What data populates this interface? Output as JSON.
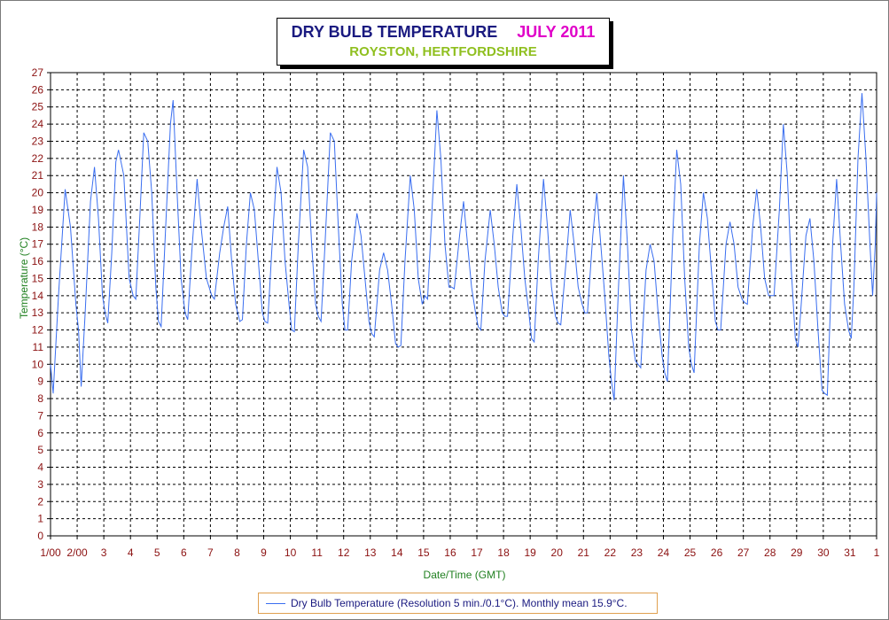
{
  "chart_data": {
    "type": "line",
    "title": "DRY BULB TEMPERATURE",
    "title_month": "JULY 2011",
    "subtitle": "ROYSTON, HERTFORDSHIRE",
    "xlabel": "Date/Time (GMT)",
    "ylabel": "Temperature (°C)",
    "ylim": [
      0,
      27
    ],
    "xlim": [
      1,
      32
    ],
    "y_ticks": [
      "0",
      "1",
      "2",
      "3",
      "4",
      "5",
      "6",
      "7",
      "8",
      "9",
      "10",
      "11",
      "12",
      "13",
      "14",
      "15",
      "16",
      "17",
      "18",
      "19",
      "20",
      "21",
      "22",
      "23",
      "24",
      "25",
      "26",
      "27"
    ],
    "x_ticks": [
      "1/00",
      "2/00",
      "3",
      "4",
      "5",
      "6",
      "7",
      "8",
      "9",
      "10",
      "11",
      "12",
      "13",
      "14",
      "15",
      "16",
      "17",
      "18",
      "19",
      "20",
      "21",
      "22",
      "23",
      "24",
      "25",
      "26",
      "27",
      "28",
      "29",
      "30",
      "31",
      "1"
    ],
    "grid": true,
    "legend_position": "bottom",
    "series": [
      {
        "name": "Dry Bulb Temperature (Resolution 5 min./0.1°C). Monthly mean 15.9°C.",
        "color": "#3a6ef0",
        "points": [
          [
            1.0,
            10.0
          ],
          [
            1.1,
            8.3
          ],
          [
            1.3,
            14.0
          ],
          [
            1.55,
            20.2
          ],
          [
            1.75,
            18.0
          ],
          [
            1.95,
            13.5
          ],
          [
            2.05,
            12.0
          ],
          [
            2.15,
            8.7
          ],
          [
            2.3,
            13.0
          ],
          [
            2.5,
            19.5
          ],
          [
            2.65,
            21.5
          ],
          [
            2.8,
            18.5
          ],
          [
            2.95,
            14.0
          ],
          [
            3.05,
            13.0
          ],
          [
            3.15,
            12.4
          ],
          [
            3.3,
            16.5
          ],
          [
            3.45,
            21.8
          ],
          [
            3.55,
            22.5
          ],
          [
            3.75,
            21.0
          ],
          [
            3.95,
            15.0
          ],
          [
            4.1,
            14.0
          ],
          [
            4.2,
            13.8
          ],
          [
            4.35,
            18.5
          ],
          [
            4.5,
            23.5
          ],
          [
            4.65,
            23.0
          ],
          [
            4.8,
            20.0
          ],
          [
            4.95,
            14.5
          ],
          [
            5.05,
            12.5
          ],
          [
            5.15,
            12.2
          ],
          [
            5.35,
            19.0
          ],
          [
            5.5,
            24.0
          ],
          [
            5.6,
            25.4
          ],
          [
            5.75,
            20.0
          ],
          [
            5.9,
            15.0
          ],
          [
            6.05,
            13.0
          ],
          [
            6.15,
            12.6
          ],
          [
            6.3,
            16.5
          ],
          [
            6.5,
            20.8
          ],
          [
            6.65,
            18.0
          ],
          [
            6.85,
            15.0
          ],
          [
            7.05,
            14.0
          ],
          [
            7.15,
            13.8
          ],
          [
            7.35,
            16.5
          ],
          [
            7.5,
            18.0
          ],
          [
            7.65,
            19.2
          ],
          [
            7.8,
            16.0
          ],
          [
            7.95,
            13.5
          ],
          [
            8.1,
            12.5
          ],
          [
            8.2,
            12.6
          ],
          [
            8.35,
            17.0
          ],
          [
            8.5,
            20.0
          ],
          [
            8.65,
            19.0
          ],
          [
            8.8,
            16.0
          ],
          [
            8.95,
            13.0
          ],
          [
            9.05,
            12.5
          ],
          [
            9.15,
            12.4
          ],
          [
            9.3,
            16.5
          ],
          [
            9.5,
            21.5
          ],
          [
            9.65,
            20.0
          ],
          [
            9.8,
            16.0
          ],
          [
            9.95,
            13.5
          ],
          [
            10.05,
            12.0
          ],
          [
            10.15,
            11.9
          ],
          [
            10.3,
            17.0
          ],
          [
            10.5,
            22.5
          ],
          [
            10.65,
            21.5
          ],
          [
            10.8,
            17.0
          ],
          [
            10.95,
            13.5
          ],
          [
            11.05,
            12.8
          ],
          [
            11.15,
            12.5
          ],
          [
            11.3,
            17.0
          ],
          [
            11.5,
            23.5
          ],
          [
            11.65,
            23.0
          ],
          [
            11.8,
            18.0
          ],
          [
            11.95,
            13.5
          ],
          [
            12.05,
            12.0
          ],
          [
            12.15,
            12.0
          ],
          [
            12.3,
            16.0
          ],
          [
            12.5,
            18.8
          ],
          [
            12.65,
            17.5
          ],
          [
            12.8,
            15.0
          ],
          [
            12.95,
            12.5
          ],
          [
            13.05,
            11.8
          ],
          [
            13.15,
            11.6
          ],
          [
            13.35,
            15.5
          ],
          [
            13.5,
            16.5
          ],
          [
            13.65,
            15.5
          ],
          [
            13.8,
            13.5
          ],
          [
            13.95,
            11.2
          ],
          [
            14.05,
            11.0
          ],
          [
            14.15,
            11.1
          ],
          [
            14.3,
            16.0
          ],
          [
            14.5,
            21.0
          ],
          [
            14.65,
            19.0
          ],
          [
            14.8,
            15.0
          ],
          [
            14.95,
            13.5
          ],
          [
            15.05,
            14.0
          ],
          [
            15.15,
            13.8
          ],
          [
            15.35,
            20.0
          ],
          [
            15.5,
            24.8
          ],
          [
            15.65,
            22.0
          ],
          [
            15.8,
            17.0
          ],
          [
            15.95,
            14.5
          ],
          [
            16.05,
            14.5
          ],
          [
            16.15,
            14.4
          ],
          [
            16.35,
            17.5
          ],
          [
            16.5,
            19.5
          ],
          [
            16.65,
            17.0
          ],
          [
            16.8,
            14.5
          ],
          [
            16.95,
            13.0
          ],
          [
            17.05,
            12.2
          ],
          [
            17.15,
            12.0
          ],
          [
            17.3,
            16.0
          ],
          [
            17.5,
            19.0
          ],
          [
            17.65,
            17.0
          ],
          [
            17.8,
            14.5
          ],
          [
            17.95,
            13.0
          ],
          [
            18.05,
            12.8
          ],
          [
            18.15,
            12.8
          ],
          [
            18.35,
            17.5
          ],
          [
            18.5,
            20.5
          ],
          [
            18.65,
            18.0
          ],
          [
            18.8,
            15.0
          ],
          [
            18.95,
            13.0
          ],
          [
            19.05,
            11.5
          ],
          [
            19.15,
            11.3
          ],
          [
            19.3,
            16.0
          ],
          [
            19.5,
            20.8
          ],
          [
            19.65,
            18.0
          ],
          [
            19.8,
            14.5
          ],
          [
            19.95,
            12.8
          ],
          [
            20.05,
            12.4
          ],
          [
            20.15,
            12.3
          ],
          [
            20.35,
            16.0
          ],
          [
            20.5,
            19.0
          ],
          [
            20.65,
            17.0
          ],
          [
            20.8,
            14.5
          ],
          [
            20.95,
            13.5
          ],
          [
            21.05,
            13.0
          ],
          [
            21.15,
            13.0
          ],
          [
            21.35,
            17.5
          ],
          [
            21.5,
            20.0
          ],
          [
            21.65,
            17.0
          ],
          [
            21.8,
            14.0
          ],
          [
            21.95,
            10.5
          ],
          [
            22.05,
            9.0
          ],
          [
            22.15,
            7.9
          ],
          [
            22.3,
            14.0
          ],
          [
            22.5,
            21.0
          ],
          [
            22.65,
            17.0
          ],
          [
            22.8,
            12.0
          ],
          [
            22.95,
            10.2
          ],
          [
            23.05,
            10.0
          ],
          [
            23.15,
            9.8
          ],
          [
            23.35,
            15.5
          ],
          [
            23.5,
            17.0
          ],
          [
            23.65,
            16.0
          ],
          [
            23.8,
            13.0
          ],
          [
            23.95,
            10.5
          ],
          [
            24.05,
            9.5
          ],
          [
            24.15,
            9.0
          ],
          [
            24.35,
            17.5
          ],
          [
            24.5,
            22.5
          ],
          [
            24.65,
            20.5
          ],
          [
            24.8,
            15.0
          ],
          [
            24.95,
            11.0
          ],
          [
            25.05,
            10.0
          ],
          [
            25.15,
            9.5
          ],
          [
            25.35,
            17.0
          ],
          [
            25.5,
            20.0
          ],
          [
            25.65,
            18.5
          ],
          [
            25.8,
            15.5
          ],
          [
            25.95,
            12.5
          ],
          [
            26.05,
            12.0
          ],
          [
            26.15,
            12.0
          ],
          [
            26.35,
            17.0
          ],
          [
            26.5,
            18.3
          ],
          [
            26.65,
            17.0
          ],
          [
            26.8,
            14.5
          ],
          [
            26.95,
            13.8
          ],
          [
            27.05,
            13.6
          ],
          [
            27.15,
            13.5
          ],
          [
            27.35,
            18.0
          ],
          [
            27.5,
            20.2
          ],
          [
            27.65,
            18.0
          ],
          [
            27.8,
            15.0
          ],
          [
            27.95,
            14.0
          ],
          [
            28.05,
            14.0
          ],
          [
            28.15,
            14.0
          ],
          [
            28.35,
            19.0
          ],
          [
            28.5,
            24.0
          ],
          [
            28.65,
            21.0
          ],
          [
            28.8,
            15.5
          ],
          [
            28.95,
            11.5
          ],
          [
            29.05,
            11.0
          ],
          [
            29.15,
            13.0
          ],
          [
            29.35,
            17.5
          ],
          [
            29.5,
            18.5
          ],
          [
            29.65,
            16.0
          ],
          [
            29.8,
            12.0
          ],
          [
            29.95,
            8.5
          ],
          [
            30.05,
            8.3
          ],
          [
            30.15,
            8.2
          ],
          [
            30.35,
            17.0
          ],
          [
            30.5,
            20.8
          ],
          [
            30.65,
            17.0
          ],
          [
            30.8,
            13.5
          ],
          [
            30.95,
            12.0
          ],
          [
            31.05,
            11.5
          ],
          [
            31.15,
            14.5
          ],
          [
            31.3,
            22.0
          ],
          [
            31.45,
            25.8
          ],
          [
            31.6,
            22.0
          ],
          [
            31.75,
            17.0
          ],
          [
            31.85,
            14.0
          ],
          [
            31.95,
            17.0
          ],
          [
            32.0,
            20.0
          ]
        ]
      }
    ]
  }
}
